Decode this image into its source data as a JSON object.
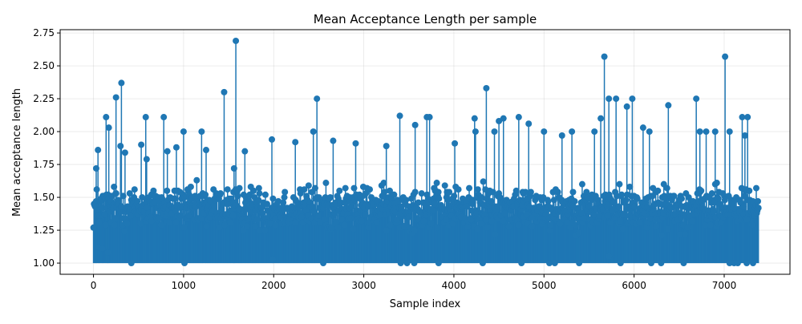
{
  "chart_data": {
    "type": "line",
    "title": "Mean Acceptance Length per sample",
    "xlabel": "Sample index",
    "ylabel": "Mean acceptance length",
    "xlim": [
      -370,
      7730
    ],
    "ylim": [
      0.915,
      2.775
    ],
    "xticks": [
      0,
      1000,
      2000,
      3000,
      4000,
      5000,
      6000,
      7000
    ],
    "yticks": [
      1.0,
      1.25,
      1.5,
      1.75,
      2.0,
      2.25,
      2.5,
      2.75
    ],
    "grid": true,
    "marker": "circle",
    "style": "stem",
    "baseline": 1.0,
    "color": "#1f77b4",
    "x_range": [
      0,
      7380
    ],
    "band": {
      "low": 1.18,
      "high": 1.66
    },
    "notable_points": [
      {
        "x": 30,
        "y": 1.72
      },
      {
        "x": 50,
        "y": 1.86
      },
      {
        "x": 60,
        "y": 1.12
      },
      {
        "x": 100,
        "y": 1.11
      },
      {
        "x": 140,
        "y": 2.11
      },
      {
        "x": 160,
        "y": 1.08
      },
      {
        "x": 170,
        "y": 2.03
      },
      {
        "x": 250,
        "y": 2.26
      },
      {
        "x": 300,
        "y": 1.89
      },
      {
        "x": 310,
        "y": 2.37
      },
      {
        "x": 350,
        "y": 1.84
      },
      {
        "x": 420,
        "y": 1.0
      },
      {
        "x": 530,
        "y": 1.9
      },
      {
        "x": 580,
        "y": 2.11
      },
      {
        "x": 590,
        "y": 1.79
      },
      {
        "x": 780,
        "y": 2.11
      },
      {
        "x": 820,
        "y": 1.85
      },
      {
        "x": 920,
        "y": 1.88
      },
      {
        "x": 1000,
        "y": 2.0
      },
      {
        "x": 1010,
        "y": 1.0
      },
      {
        "x": 1200,
        "y": 2.0
      },
      {
        "x": 1250,
        "y": 1.86
      },
      {
        "x": 1450,
        "y": 2.3
      },
      {
        "x": 1560,
        "y": 1.72
      },
      {
        "x": 1580,
        "y": 2.69
      },
      {
        "x": 1680,
        "y": 1.85
      },
      {
        "x": 1980,
        "y": 1.94
      },
      {
        "x": 1990,
        "y": 1.03
      },
      {
        "x": 2240,
        "y": 1.92
      },
      {
        "x": 2440,
        "y": 2.0
      },
      {
        "x": 2480,
        "y": 2.25
      },
      {
        "x": 2550,
        "y": 1.0
      },
      {
        "x": 2660,
        "y": 1.93
      },
      {
        "x": 2910,
        "y": 1.91
      },
      {
        "x": 3250,
        "y": 1.89
      },
      {
        "x": 3400,
        "y": 2.12
      },
      {
        "x": 3410,
        "y": 1.0
      },
      {
        "x": 3480,
        "y": 1.0
      },
      {
        "x": 3560,
        "y": 1.0
      },
      {
        "x": 3570,
        "y": 2.05
      },
      {
        "x": 3700,
        "y": 2.11
      },
      {
        "x": 3730,
        "y": 2.11
      },
      {
        "x": 3830,
        "y": 1.0
      },
      {
        "x": 4010,
        "y": 1.91
      },
      {
        "x": 4230,
        "y": 2.1
      },
      {
        "x": 4240,
        "y": 2.0
      },
      {
        "x": 4320,
        "y": 1.0
      },
      {
        "x": 4360,
        "y": 2.33
      },
      {
        "x": 4450,
        "y": 2.0
      },
      {
        "x": 4500,
        "y": 2.08
      },
      {
        "x": 4550,
        "y": 2.1
      },
      {
        "x": 4720,
        "y": 2.11
      },
      {
        "x": 4750,
        "y": 1.0
      },
      {
        "x": 4830,
        "y": 2.06
      },
      {
        "x": 5000,
        "y": 2.0
      },
      {
        "x": 5060,
        "y": 1.0
      },
      {
        "x": 5120,
        "y": 1.0
      },
      {
        "x": 5200,
        "y": 1.97
      },
      {
        "x": 5310,
        "y": 2.0
      },
      {
        "x": 5390,
        "y": 1.0
      },
      {
        "x": 5560,
        "y": 2.0
      },
      {
        "x": 5630,
        "y": 2.1
      },
      {
        "x": 5670,
        "y": 2.57
      },
      {
        "x": 5720,
        "y": 2.25
      },
      {
        "x": 5720,
        "y": 1.05
      },
      {
        "x": 5800,
        "y": 2.25
      },
      {
        "x": 5850,
        "y": 1.0
      },
      {
        "x": 5920,
        "y": 2.19
      },
      {
        "x": 5980,
        "y": 2.25
      },
      {
        "x": 6100,
        "y": 2.03
      },
      {
        "x": 6170,
        "y": 2.0
      },
      {
        "x": 6190,
        "y": 1.0
      },
      {
        "x": 6300,
        "y": 1.0
      },
      {
        "x": 6380,
        "y": 2.2
      },
      {
        "x": 6550,
        "y": 1.0
      },
      {
        "x": 6690,
        "y": 2.25
      },
      {
        "x": 6730,
        "y": 2.0
      },
      {
        "x": 6800,
        "y": 2.0
      },
      {
        "x": 6900,
        "y": 2.0
      },
      {
        "x": 7010,
        "y": 2.57
      },
      {
        "x": 7060,
        "y": 2.0
      },
      {
        "x": 7060,
        "y": 1.0
      },
      {
        "x": 7110,
        "y": 1.0
      },
      {
        "x": 7150,
        "y": 1.0
      },
      {
        "x": 7200,
        "y": 2.11
      },
      {
        "x": 7230,
        "y": 1.97
      },
      {
        "x": 7260,
        "y": 2.11
      },
      {
        "x": 7250,
        "y": 1.0
      },
      {
        "x": 7320,
        "y": 1.0
      }
    ]
  }
}
